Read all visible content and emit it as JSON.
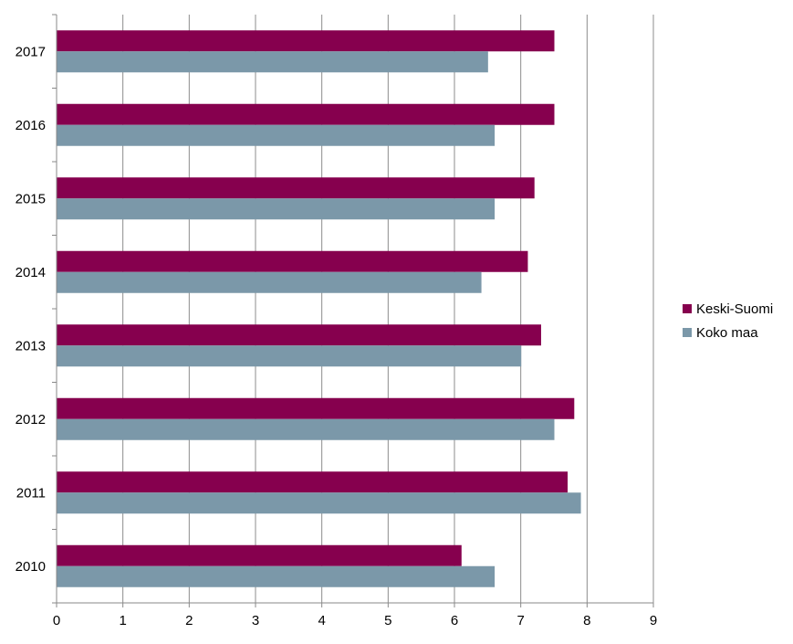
{
  "chart_data": {
    "type": "bar",
    "orientation": "horizontal",
    "categories": [
      "2017",
      "2016",
      "2015",
      "2014",
      "2013",
      "2012",
      "2011",
      "2010"
    ],
    "series": [
      {
        "name": "Keski-Suomi",
        "color": "#86004e",
        "values": [
          7.5,
          7.5,
          7.2,
          7.1,
          7.3,
          7.8,
          7.7,
          6.1
        ]
      },
      {
        "name": "Koko maa",
        "color": "#7b98a9",
        "values": [
          6.5,
          6.6,
          6.6,
          6.4,
          7.0,
          7.5,
          7.9,
          6.6
        ]
      }
    ],
    "xlim": [
      0,
      9
    ],
    "xticks": [
      "0",
      "1",
      "2",
      "3",
      "4",
      "5",
      "6",
      "7",
      "8",
      "9"
    ],
    "grid": "vertical",
    "legend_position": "right"
  }
}
